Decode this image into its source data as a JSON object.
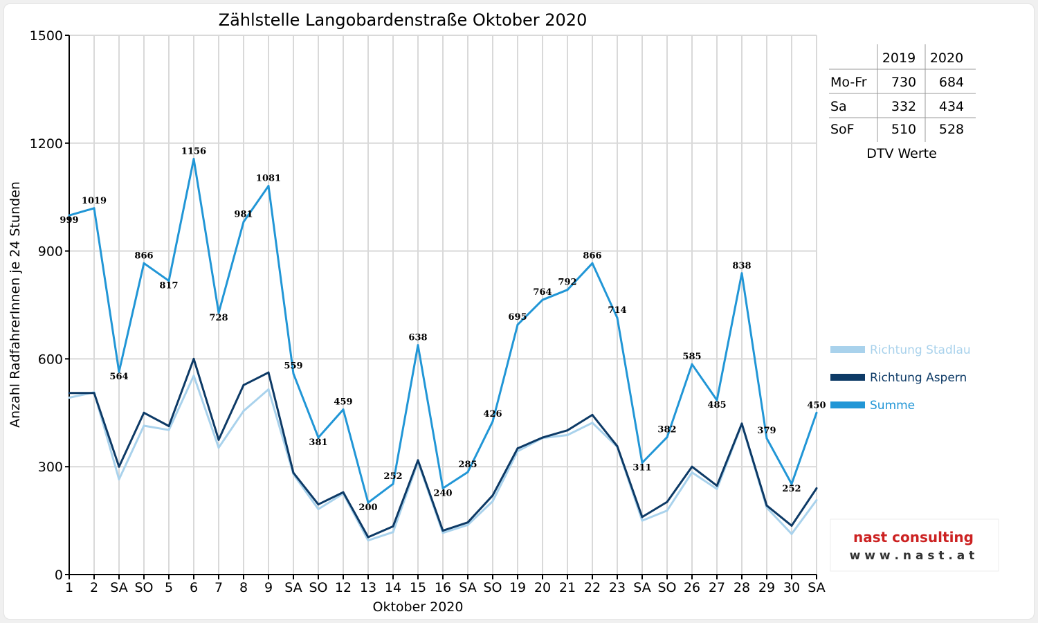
{
  "chart_data": {
    "type": "line",
    "title": "Zählstelle Langobardenstraße Oktober 2020",
    "xlabel": "Oktober 2020",
    "ylabel": "Anzahl RadfahrerInnen je 24 Stunden",
    "ylim": [
      0,
      1500
    ],
    "yticks": [
      0,
      300,
      600,
      900,
      1200,
      1500
    ],
    "grid": true,
    "legend_position": "right",
    "categories": [
      "1",
      "2",
      "SA",
      "SO",
      "5",
      "6",
      "7",
      "8",
      "9",
      "SA",
      "SO",
      "12",
      "13",
      "14",
      "15",
      "16",
      "SA",
      "SO",
      "19",
      "20",
      "21",
      "22",
      "23",
      "SA",
      "SO",
      "26",
      "27",
      "28",
      "29",
      "30",
      "SA"
    ],
    "category_colors": [
      "#000000",
      "#000000",
      "#000000",
      "#e00000",
      "#000000",
      "#000000",
      "#000000",
      "#000000",
      "#000000",
      "#000000",
      "#e00000",
      "#000000",
      "#000000",
      "#000000",
      "#000000",
      "#000000",
      "#000000",
      "#e00000",
      "#000000",
      "#000000",
      "#000000",
      "#000000",
      "#000000",
      "#000000",
      "#e00000",
      "#e00000",
      "#000000",
      "#000000",
      "#000000",
      "#000000",
      "#000000"
    ],
    "series": [
      {
        "name": "Richtung Stadlau",
        "color": "#a9d2ec",
        "values": [
          492,
          507,
          265,
          414,
          402,
          553,
          353,
          455,
          515,
          279,
          182,
          225,
          95,
          118,
          313,
          116,
          138,
          204,
          343,
          380,
          388,
          422,
          355,
          150,
          178,
          284,
          238,
          418,
          186,
          113,
          207
        ]
      },
      {
        "name": "Richtung Aspern",
        "color": "#0d3a66",
        "values": [
          505,
          505,
          300,
          450,
          413,
          600,
          375,
          527,
          562,
          283,
          195,
          229,
          104,
          134,
          318,
          122,
          145,
          220,
          351,
          381,
          401,
          444,
          357,
          160,
          202,
          300,
          247,
          420,
          192,
          136,
          240
        ]
      },
      {
        "name": "Summe",
        "color": "#2196d6",
        "values": [
          999,
          1019,
          564,
          866,
          817,
          1156,
          728,
          981,
          1081,
          559,
          381,
          459,
          200,
          252,
          638,
          240,
          285,
          426,
          695,
          764,
          792,
          866,
          714,
          311,
          382,
          585,
          485,
          838,
          379,
          252,
          450
        ],
        "data_labels": true
      }
    ]
  },
  "dtv_table": {
    "headers": [
      "",
      "2019",
      "2020"
    ],
    "rows": [
      [
        "Mo-Fr",
        "730",
        "684"
      ],
      [
        "Sa",
        "332",
        "434"
      ],
      [
        "SoF",
        "510",
        "528"
      ]
    ],
    "caption": "DTV Werte"
  },
  "logo": {
    "line1": "nast consulting",
    "line2": "w w w . n a s t . a t"
  }
}
